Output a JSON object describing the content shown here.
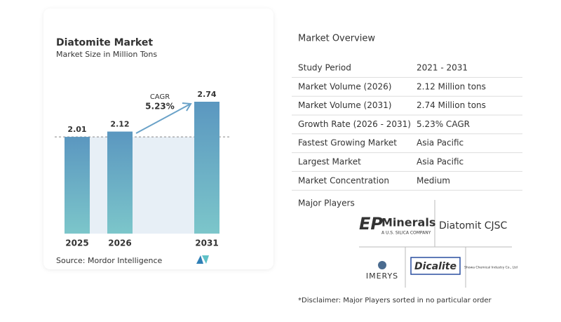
{
  "chart_data": {
    "type": "bar",
    "title": "Diatomite Market",
    "subtitle": "Market Size in Million Tons",
    "categories": [
      "2025",
      "2026",
      "2031"
    ],
    "values": [
      2.01,
      2.12,
      2.74
    ],
    "annotation": "CAGR",
    "cagr": "5.23%",
    "source": "Source: Mordor Intelligence"
  },
  "overview": {
    "heading": "Market Overview",
    "rows": [
      [
        "Study Period",
        "2021 - 2031"
      ],
      [
        "Market Volume (2026)",
        "2.12 Million tons"
      ],
      [
        "Market Volume (2031)",
        "2.74 Million tons"
      ],
      [
        "Growth Rate (2026 - 2031)",
        "5.23% CAGR"
      ],
      [
        "Fastest Growing Market",
        "Asia Pacific"
      ],
      [
        "Largest Market",
        "Asia Pacific"
      ],
      [
        "Market Concentration",
        "Medium"
      ]
    ],
    "players_heading": "Major Players",
    "players": {
      "ep": "EP",
      "minerals": "Minerals",
      "ep_sub": "A U.S. SILICA COMPANY",
      "diatomit": "Diatomit CJSC",
      "imerys": "IMERYS",
      "dicalite": "Dicalite",
      "showa": "Showa Chemical Industry Co., Ltd"
    },
    "disclaimer": "*Disclaimer: Major Players sorted in no particular order"
  }
}
